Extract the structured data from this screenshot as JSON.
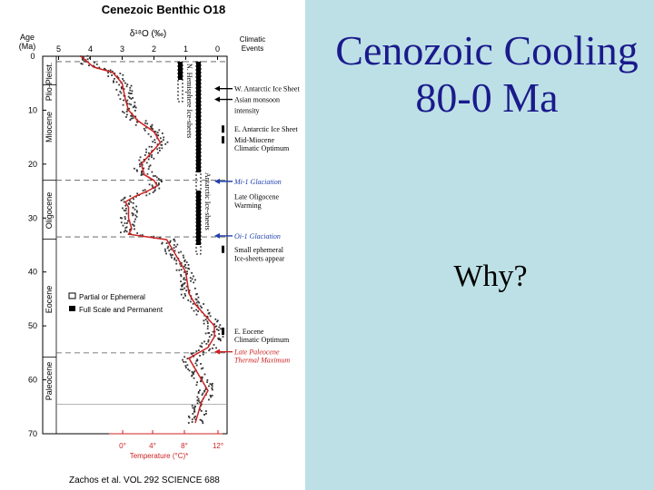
{
  "slide": {
    "title_line1": "Cenozoic Cooling",
    "title_line2": "80-0 Ma",
    "question": "Why?"
  },
  "figure": {
    "title": "Cenezoic Benthic O18",
    "x_axis_top_label": "δ¹⁸O (‰)",
    "x_top_ticks": [
      "5",
      "4",
      "3",
      "2",
      "1",
      "0"
    ],
    "y_axis_label_line1": "Age",
    "y_axis_label_line2": "(Ma)",
    "y_ticks": [
      "0",
      "10",
      "20",
      "30",
      "40",
      "50",
      "60",
      "70"
    ],
    "epochs": [
      "Plio-Pleist.",
      "Miocene",
      "Oligocene",
      "Eocene",
      "Paleocene"
    ],
    "ice_label_n": "N. Hemisphere Ice-sheets",
    "ice_label_ant": "Antarctic Ice-sheets",
    "climatic_events_header_line1": "Climatic",
    "climatic_events_header_line2": "Events",
    "events": [
      {
        "text": "W. Antarctic Ice Sheet",
        "color": "#000000"
      },
      {
        "text": "Asian monsoon",
        "color": "#000000"
      },
      {
        "text": "intensity",
        "color": "#000000"
      },
      {
        "text": "E. Antarctic Ice Sheet",
        "color": "#000000"
      },
      {
        "text": "Mid-Miocene",
        "color": "#000000"
      },
      {
        "text": "Climatic Optimum",
        "color": "#000000"
      },
      {
        "text": "Mi-1 Glaciation",
        "color": "#1f3fae"
      },
      {
        "text": "Late Oligocene",
        "color": "#000000"
      },
      {
        "text": "Warming",
        "color": "#000000"
      },
      {
        "text": "Oi-1 Glaciation",
        "color": "#1f3fae"
      },
      {
        "text": "Small ephemeral",
        "color": "#000000"
      },
      {
        "text": "Ice-sheets appear",
        "color": "#000000"
      },
      {
        "text": "E. Eocene",
        "color": "#000000"
      },
      {
        "text": "Climatic Optimum",
        "color": "#000000"
      },
      {
        "text": "Late Paleocene",
        "color": "#cc2222"
      },
      {
        "text": "Thermal Maximum",
        "color": "#cc2222"
      }
    ],
    "legend": {
      "partial": "Partial or Ephemeral",
      "full": "Full Scale and Permanent"
    },
    "temperature_ticks": [
      "0°",
      "4°",
      "8°",
      "12°"
    ],
    "temperature_label": "Temperature (°C)*",
    "citation": "Zachos et al.  VOL 292   SCIENCE   688",
    "colors": {
      "curve": "#cc2222",
      "scatter": "#333333",
      "event_blue": "#1f3fae",
      "event_red": "#cc2222"
    }
  },
  "chart_data": {
    "type": "scatter",
    "title": "Cenezoic Benthic O18",
    "xlabel": "δ¹⁸O (‰)",
    "ylabel": "Age (Ma)",
    "xlim": [
      5.5,
      -0.3
    ],
    "ylim": [
      0,
      70
    ],
    "x_reversed": true,
    "series": [
      {
        "values": [
          {
            "age": 0,
            "d18o": 4.3
          },
          {
            "age": 2,
            "d18o": 3.9
          },
          {
            "age": 3,
            "d18o": 3.3
          },
          {
            "age": 5,
            "d18o": 3.0
          },
          {
            "age": 8,
            "d18o": 2.9
          },
          {
            "age": 10,
            "d18o": 2.8
          },
          {
            "age": 12,
            "d18o": 2.5
          },
          {
            "age": 14,
            "d18o": 2.0
          },
          {
            "age": 16,
            "d18o": 1.8
          },
          {
            "age": 18,
            "d18o": 2.1
          },
          {
            "age": 20,
            "d18o": 2.4
          },
          {
            "age": 22,
            "d18o": 2.3
          },
          {
            "age": 23,
            "d18o": 2.0
          },
          {
            "age": 24,
            "d18o": 1.9
          },
          {
            "age": 25,
            "d18o": 2.2
          },
          {
            "age": 26,
            "d18o": 2.6
          },
          {
            "age": 27,
            "d18o": 2.9
          },
          {
            "age": 28,
            "d18o": 2.8
          },
          {
            "age": 30,
            "d18o": 2.8
          },
          {
            "age": 32,
            "d18o": 2.7
          },
          {
            "age": 33,
            "d18o": 2.8
          },
          {
            "age": 34,
            "d18o": 1.6
          },
          {
            "age": 36,
            "d18o": 1.4
          },
          {
            "age": 40,
            "d18o": 1.0
          },
          {
            "age": 44,
            "d18o": 0.9
          },
          {
            "age": 46,
            "d18o": 0.7
          },
          {
            "age": 48,
            "d18o": 0.4
          },
          {
            "age": 50,
            "d18o": 0.1
          },
          {
            "age": 52,
            "d18o": 0.1
          },
          {
            "age": 54,
            "d18o": 0.3
          },
          {
            "age": 55,
            "d18o": 0.6
          },
          {
            "age": 56,
            "d18o": 0.9
          },
          {
            "age": 58,
            "d18o": 0.7
          },
          {
            "age": 60,
            "d18o": 0.5
          },
          {
            "age": 62,
            "d18o": 0.3
          },
          {
            "age": 64,
            "d18o": 0.5
          },
          {
            "age": 66,
            "d18o": 0.6
          },
          {
            "age": 68,
            "d18o": 0.7
          }
        ]
      }
    ],
    "grid": false
  }
}
